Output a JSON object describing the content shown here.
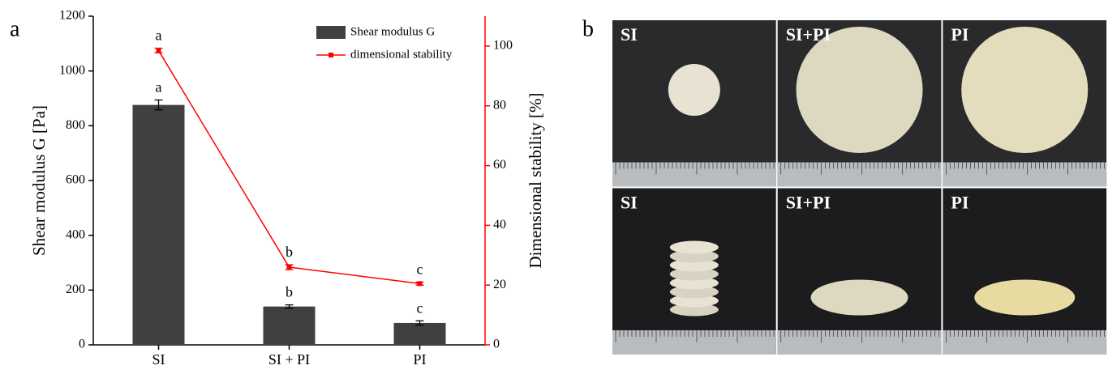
{
  "chart_data": {
    "type": "bar",
    "panel_label": "a",
    "categories": [
      "SI",
      "SI + PI",
      "PI"
    ],
    "ylabel": "Shear modulus G [Pa]",
    "y2label": "Dimensional stability [%]",
    "ylim": [
      0,
      1200
    ],
    "yticks": [
      0,
      200,
      400,
      600,
      800,
      1000,
      1200
    ],
    "y2lim": [
      0,
      110
    ],
    "y2ticks": [
      0,
      20,
      40,
      60,
      80,
      100
    ],
    "y2color": "#ff0000",
    "legend": "upper right",
    "series": [
      {
        "name": "Shear modulus G",
        "type": "bar",
        "color": "#404040",
        "values": [
          876,
          140,
          80
        ],
        "errors": [
          18,
          6,
          8
        ],
        "significance_letters": [
          "a",
          "b",
          "c"
        ]
      },
      {
        "name": "dimensional stability",
        "type": "line",
        "axis": "y2",
        "color": "#ff0000",
        "values": [
          98.5,
          26,
          20.5
        ],
        "errors": [
          0.8,
          0.8,
          0.5
        ],
        "significance_letters": [
          "a",
          "b",
          "c"
        ]
      }
    ]
  },
  "photo_panel": {
    "label": "b",
    "tiles": [
      [
        "SI",
        "SI+PI",
        "PI"
      ],
      [
        "SI",
        "SI+PI",
        "PI"
      ]
    ]
  }
}
